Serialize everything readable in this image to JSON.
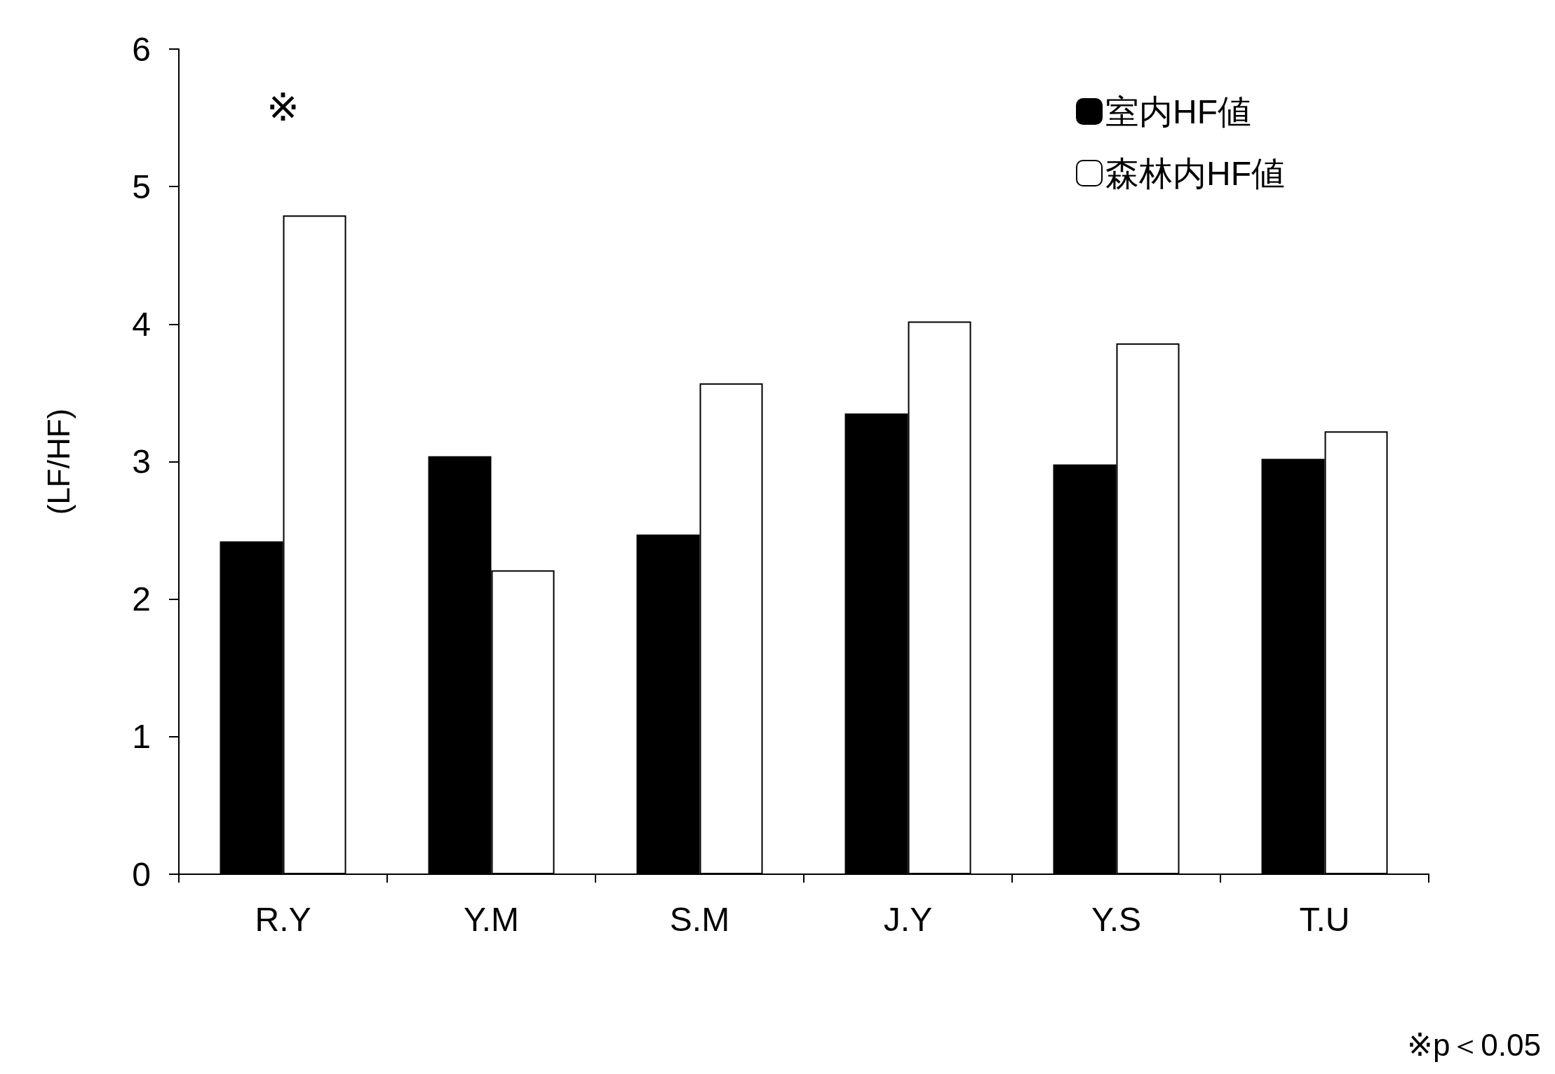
{
  "chart_data": {
    "type": "bar",
    "ylabel": "(LF/HF)",
    "categories": [
      "R.Y",
      "Y.M",
      "S.M",
      "J.Y",
      "Y.S",
      "T.U"
    ],
    "series": [
      {
        "name": "室内HF値",
        "color": "#000000",
        "values": [
          2.42,
          3.04,
          2.47,
          3.35,
          2.98,
          3.02
        ]
      },
      {
        "name": "森林内HF値",
        "color": "#ffffff",
        "values": [
          4.79,
          2.21,
          3.57,
          4.02,
          3.86,
          3.22
        ]
      }
    ],
    "ylim": [
      0,
      6
    ],
    "yticks": [
      0,
      1,
      2,
      3,
      4,
      5,
      6
    ],
    "grid": false,
    "legend": "top right",
    "annotations": [
      "※",
      "※p＜0.05"
    ]
  }
}
